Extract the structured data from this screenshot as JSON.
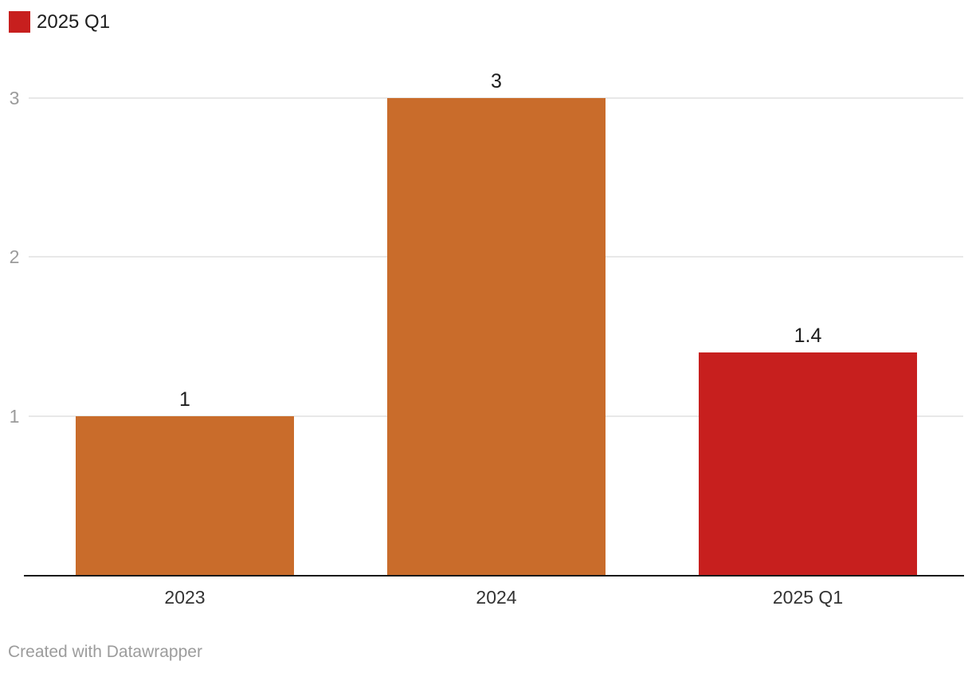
{
  "legend": {
    "label": "2025 Q1",
    "swatch_color": "#c71f1e"
  },
  "footer": {
    "credit": "Created with Datawrapper"
  },
  "chart_data": {
    "type": "bar",
    "title": "",
    "xlabel": "",
    "ylabel": "",
    "categories": [
      "2023",
      "2024",
      "2025 Q1"
    ],
    "values": [
      1,
      3,
      1.4
    ],
    "value_labels": [
      "1",
      "3",
      "1.4"
    ],
    "bar_colors": [
      "#c96c2b",
      "#c96c2b",
      "#c71f1e"
    ],
    "ylim": [
      0,
      3
    ],
    "yticks": [
      1,
      2,
      3
    ],
    "ytick_labels": [
      "1",
      "2",
      "3"
    ],
    "grid": "horizontal-gridlines-on",
    "legend_position": "top-left",
    "legend_entries": [
      {
        "label": "2025 Q1",
        "color": "#c71f1e"
      }
    ],
    "colors": {
      "orange_series": "#c96c2b",
      "highlight_red": "#c71f1e",
      "gridline": "#e8e8e8",
      "baseline_axis": "#1a1a1a",
      "ytick_text": "#9b9b9b",
      "xtick_text": "#333333",
      "value_label_text": "#1d1d1d"
    }
  }
}
